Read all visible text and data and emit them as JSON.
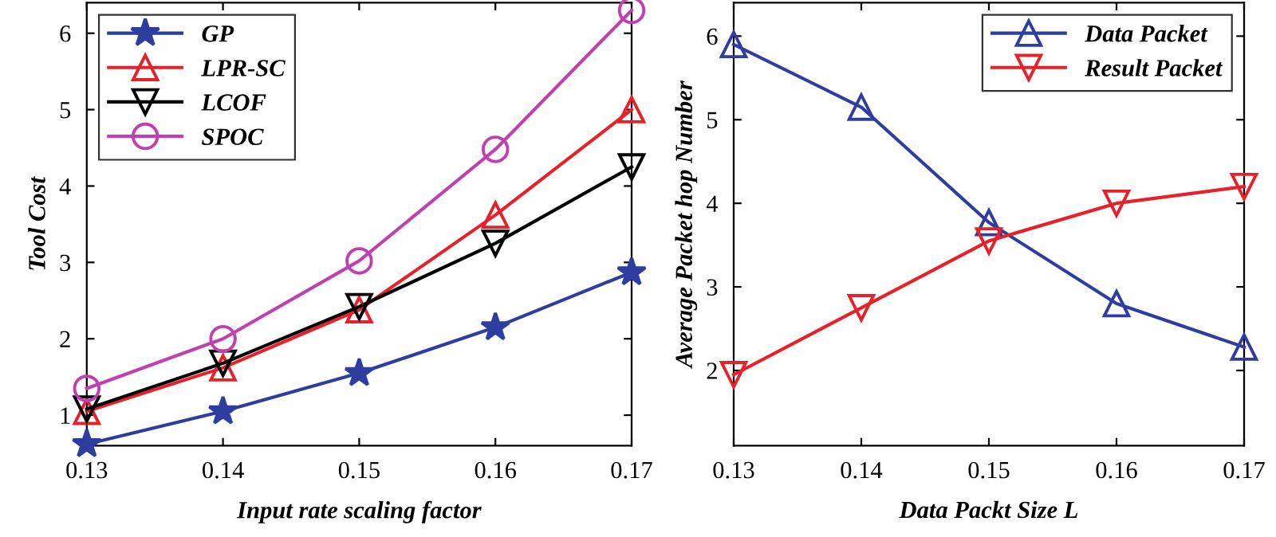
{
  "chart_data": [
    {
      "type": "line",
      "xlabel": "Input rate scaling factor",
      "ylabel": "Tool Cost",
      "x": [
        0.13,
        0.14,
        0.15,
        0.16,
        0.17
      ],
      "xlim": [
        0.13,
        0.17
      ],
      "xticks": [
        0.13,
        0.14,
        0.15,
        0.16,
        0.17
      ],
      "ylim": [
        0.6,
        6.4
      ],
      "yticks": [
        1,
        2,
        3,
        4,
        5,
        6
      ],
      "legend": "top left",
      "grid": false,
      "line_style": "solid",
      "series": [
        {
          "name": "GP",
          "color": "#2e3ea0",
          "marker": "star",
          "values": [
            0.62,
            1.05,
            1.55,
            2.15,
            2.87
          ]
        },
        {
          "name": "LPR-SC",
          "color": "#e8202a",
          "marker": "triangle",
          "values": [
            1.05,
            1.62,
            2.38,
            3.62,
            5.0
          ]
        },
        {
          "name": "LCOF",
          "color": "#000000",
          "marker": "triangle_down",
          "values": [
            1.08,
            1.68,
            2.42,
            3.25,
            4.25
          ]
        },
        {
          "name": "SPOC",
          "color": "#c040b0",
          "marker": "circle",
          "values": [
            1.35,
            2.0,
            3.02,
            4.48,
            6.3
          ]
        }
      ]
    },
    {
      "type": "line",
      "xlabel": "Data Packt Size L",
      "ylabel": "Average Packet hop Number",
      "x": [
        0.13,
        0.14,
        0.15,
        0.16,
        0.17
      ],
      "xlim": [
        0.13,
        0.17
      ],
      "xticks": [
        0.13,
        0.14,
        0.15,
        0.16,
        0.17
      ],
      "ylim": [
        1.1,
        6.4
      ],
      "yticks": [
        2,
        3,
        4,
        5,
        6
      ],
      "legend": "top right",
      "grid": false,
      "line_style": "solid",
      "series": [
        {
          "name": "Data Packet",
          "color": "#2e3ea0",
          "marker": "triangle",
          "values": [
            5.9,
            5.15,
            3.77,
            2.8,
            2.28
          ]
        },
        {
          "name": "Result Packet",
          "color": "#e8202a",
          "marker": "triangle_down",
          "values": [
            1.95,
            2.75,
            3.55,
            4.0,
            4.2
          ]
        }
      ]
    }
  ]
}
